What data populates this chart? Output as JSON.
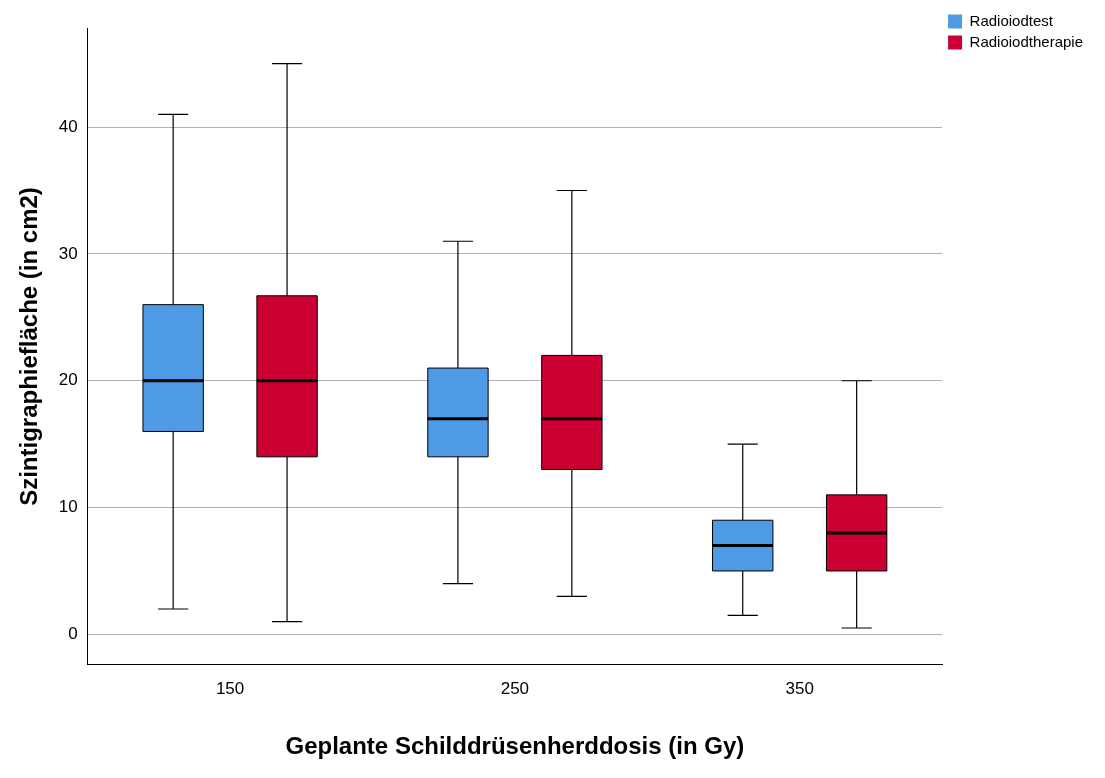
{
  "chart_data": {
    "type": "box",
    "xlabel": "Geplante Schilddrüsenherddosis (in Gy)",
    "ylabel": "Szintigraphiefläche (in cm2)",
    "categories": [
      "150",
      "250",
      "350"
    ],
    "series": [
      {
        "name": "Radioiodtest",
        "color": "#4e9ae4",
        "boxes": [
          {
            "low": 2,
            "q1": 16,
            "median": 20,
            "q3": 26,
            "high": 41
          },
          {
            "low": 4,
            "q1": 14,
            "median": 17,
            "q3": 21,
            "high": 31
          },
          {
            "low": 1.5,
            "q1": 5,
            "median": 7,
            "q3": 9,
            "high": 15
          }
        ]
      },
      {
        "name": "Radioiodtherapie",
        "color": "#cc0033",
        "boxes": [
          {
            "low": 1,
            "q1": 14,
            "median": 20,
            "q3": 26.7,
            "high": 45
          },
          {
            "low": 3,
            "q1": 13,
            "median": 17,
            "q3": 22,
            "high": 35
          },
          {
            "low": 0.5,
            "q1": 5,
            "median": 8,
            "q3": 11,
            "high": 20
          }
        ]
      }
    ],
    "ylim": [
      -2.4,
      47.8
    ],
    "yticks": [
      0,
      10,
      20,
      30,
      40
    ],
    "grid": "y",
    "legend": "top right"
  }
}
